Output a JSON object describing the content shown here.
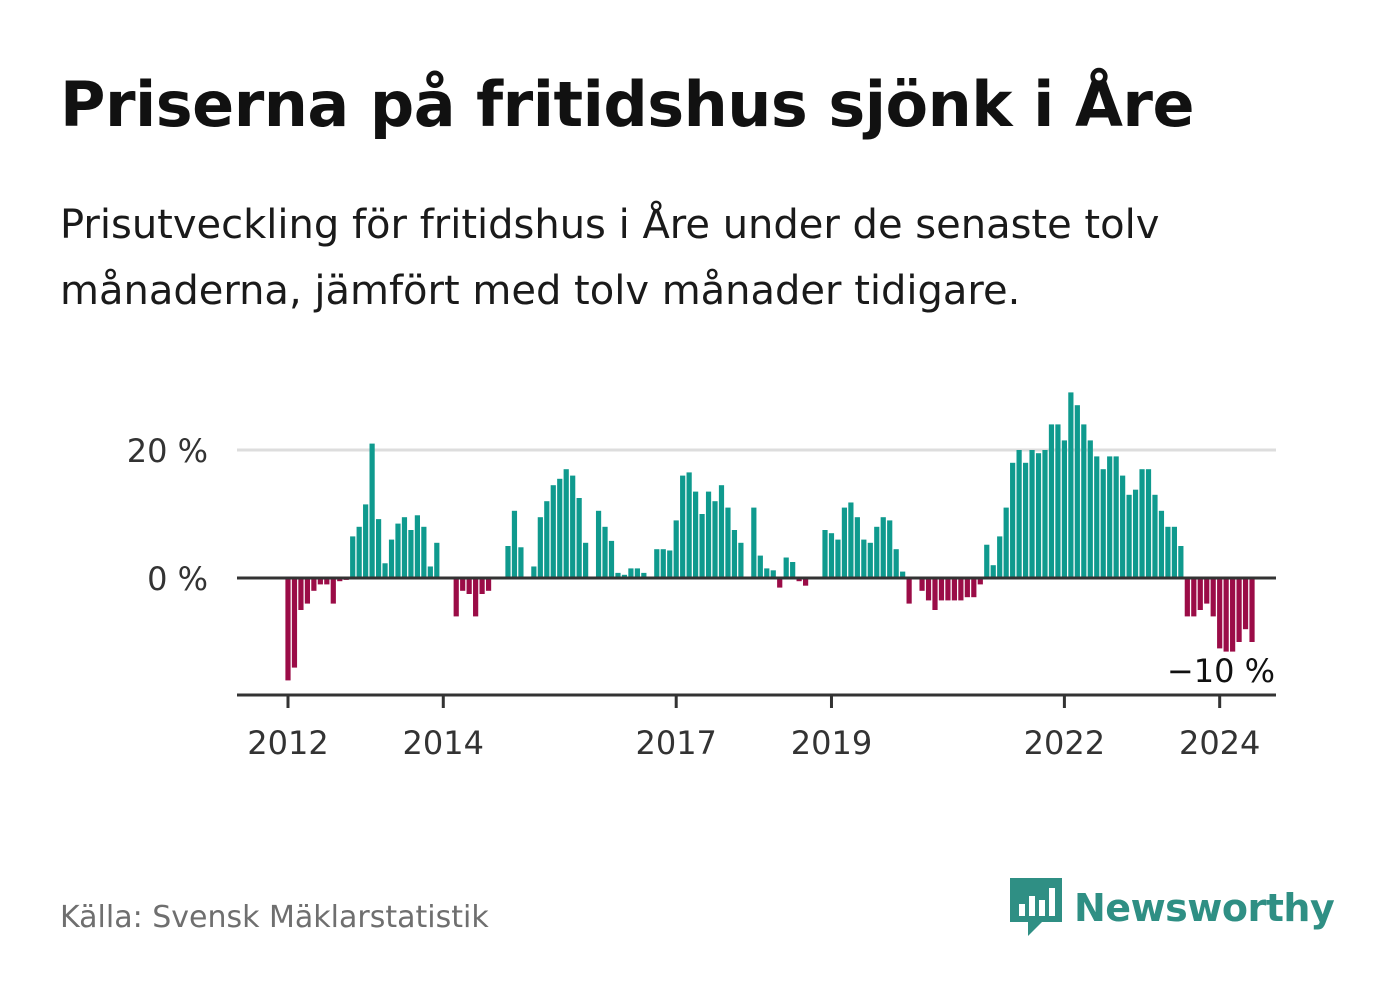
{
  "title": "Priserna på fritidshus sjönk i Åre",
  "subtitle": "Prisutveckling för fritidshus i Åre under de senaste tolv månaderna, jämfört med tolv månader tidigare.",
  "source": "Källa: Svensk Mäklarstatistik",
  "brand": {
    "name": "Newsworthy"
  },
  "colors": {
    "positive": "#0f9a8e",
    "negative": "#9b0c47",
    "axis": "#333333",
    "grid": "#dddddd",
    "brand": "#2f8f84"
  },
  "chart_data": {
    "type": "bar",
    "title": "Priserna på fritidshus sjönk i Åre",
    "xlabel": "",
    "ylabel": "",
    "unit": "%",
    "ylim": [
      -18,
      30
    ],
    "yticks": [
      {
        "value": 0,
        "label": "0 %"
      },
      {
        "value": 20,
        "label": "20 %"
      }
    ],
    "xticks": [
      {
        "index": 0,
        "label": "2012"
      },
      {
        "index": 24,
        "label": "2014"
      },
      {
        "index": 60,
        "label": "2017"
      },
      {
        "index": 84,
        "label": "2019"
      },
      {
        "index": 120,
        "label": "2022"
      },
      {
        "index": 144,
        "label": "2024"
      }
    ],
    "last_label": "−10 %",
    "series": [
      {
        "name": "Prisutveckling",
        "values": [
          -16,
          -14,
          -5,
          -4,
          -2,
          -1,
          -1,
          -4,
          -0.5,
          -0.3,
          6.5,
          8,
          11.5,
          21,
          9.2,
          2.3,
          6,
          8.5,
          9.5,
          7.5,
          9.8,
          8,
          1.8,
          5.5,
          0,
          0,
          -6,
          -2,
          -2.5,
          -6,
          -2.5,
          -2,
          0,
          0,
          5,
          10.5,
          4.8,
          0,
          1.8,
          9.5,
          12,
          14.5,
          15.5,
          17,
          16,
          12.5,
          5.5,
          0,
          10.5,
          8,
          5.8,
          0.8,
          0.5,
          1.5,
          1.5,
          0.8,
          0,
          4.5,
          4.5,
          4.3,
          9,
          16,
          16.5,
          13.5,
          10,
          13.5,
          12,
          14.5,
          11,
          7.5,
          5.5,
          0,
          11,
          3.5,
          1.5,
          1.2,
          -1.5,
          3.2,
          2.5,
          -0.5,
          -1.2,
          0,
          0,
          7.5,
          7,
          6,
          11,
          11.8,
          9.5,
          6,
          5.5,
          8,
          9.5,
          9,
          4.5,
          1,
          -4,
          0,
          -2,
          -3.5,
          -5,
          -3.5,
          -3.5,
          -3.5,
          -3.5,
          -3,
          -3,
          -1,
          5.2,
          2,
          6.5,
          11,
          18,
          20,
          18,
          20,
          19.5,
          20,
          24,
          24,
          21.5,
          29,
          27,
          24,
          21.5,
          19,
          17,
          19,
          19,
          16,
          13,
          13.8,
          17,
          17,
          13,
          10.5,
          8,
          8,
          5,
          -6,
          -6,
          -5,
          -4,
          -6,
          -11,
          -11.5,
          -11.5,
          -10,
          -8,
          -10
        ]
      }
    ]
  }
}
